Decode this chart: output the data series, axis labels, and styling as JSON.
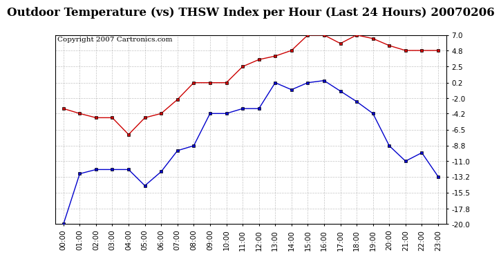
{
  "title": "Outdoor Temperature (vs) THSW Index per Hour (Last 24 Hours) 20070206",
  "copyright": "Copyright 2007 Cartronics.com",
  "hours": [
    "00:00",
    "01:00",
    "02:00",
    "03:00",
    "04:00",
    "05:00",
    "06:00",
    "07:00",
    "08:00",
    "09:00",
    "10:00",
    "11:00",
    "12:00",
    "13:00",
    "14:00",
    "15:00",
    "16:00",
    "17:00",
    "18:00",
    "19:00",
    "20:00",
    "21:00",
    "22:00",
    "23:00"
  ],
  "red_data": [
    -3.5,
    -4.2,
    -4.8,
    -4.8,
    -7.2,
    -4.8,
    -4.2,
    -2.2,
    0.2,
    0.2,
    0.2,
    2.5,
    3.5,
    4.0,
    4.8,
    7.0,
    7.0,
    5.8,
    7.0,
    6.5,
    5.5,
    4.8,
    4.8,
    4.8
  ],
  "blue_data": [
    -20.0,
    -12.8,
    -12.2,
    -12.2,
    -12.2,
    -14.5,
    -12.5,
    -9.5,
    -8.8,
    -4.2,
    -4.2,
    -3.5,
    -3.5,
    0.2,
    -0.8,
    0.2,
    0.5,
    -1.0,
    -2.5,
    -4.2,
    -8.8,
    -11.0,
    -9.8,
    -13.2
  ],
  "ylim_min": -20.0,
  "ylim_max": 7.0,
  "yticks": [
    7.0,
    4.8,
    2.5,
    0.2,
    -2.0,
    -4.2,
    -6.5,
    -8.8,
    -11.0,
    -13.2,
    -15.5,
    -17.8,
    -20.0
  ],
  "red_color": "#cc0000",
  "blue_color": "#0000cc",
  "bg_color": "#ffffff",
  "grid_color": "#aaaaaa",
  "title_fontsize": 12,
  "copyright_fontsize": 7.5,
  "tick_fontsize": 7.5
}
